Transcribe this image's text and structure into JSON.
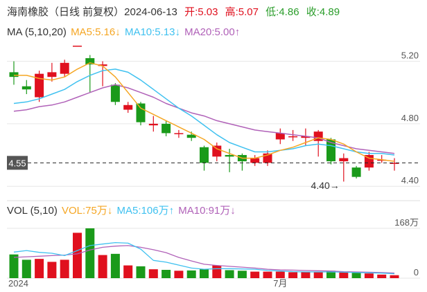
{
  "header": {
    "title": "海南橡胶（日线 前复权）",
    "date": "2024-06-13",
    "open_label": "开:5.03",
    "high_label": "高:5.07",
    "low_label": "低:4.86",
    "close_label": "收:4.89"
  },
  "ma_legend": {
    "name": "MA (5,10,20)",
    "ma5": "MA5:5.16↓",
    "ma10": "MA10:5.13↓",
    "ma20": "MA20:5.00↑"
  },
  "vol_legend": {
    "name": "VOL (5,10)",
    "vol": "VOL:75万↓",
    "ma5": "MA5:106万↑",
    "ma10": "MA10:91万↓"
  },
  "colors": {
    "up": "#e0101e",
    "down": "#1a9a1a",
    "ma5": "#f5a623",
    "ma10": "#3fc1f0",
    "ma20": "#b061b8",
    "grid": "#e6e6e6"
  },
  "chart_data": {
    "type": "candlestick",
    "price_axis": {
      "ticks": [
        "5.20",
        "4.80",
        "4.40"
      ],
      "tick_values": [
        5.2,
        4.8,
        4.4
      ],
      "ylim": [
        4.33,
        5.3
      ]
    },
    "current_price_label": "4.55",
    "current_price": 4.55,
    "low_annotation": "4.40→",
    "low_annotation_value": 4.4,
    "vol_axis": {
      "ticks": [
        "168万",
        "0"
      ],
      "tick_values": [
        168,
        0
      ]
    },
    "x_labels": [
      {
        "label": "2024",
        "index": 0
      },
      {
        "label": "7月",
        "index": 21
      }
    ],
    "candles": [
      {
        "o": 5.13,
        "c": 5.1,
        "h": 5.2,
        "l": 5.05,
        "v": 80
      },
      {
        "o": 5.04,
        "c": 5.02,
        "h": 5.08,
        "l": 4.99,
        "v": 62
      },
      {
        "o": 4.97,
        "c": 5.12,
        "h": 5.14,
        "l": 4.94,
        "v": 65
      },
      {
        "o": 5.1,
        "c": 5.13,
        "h": 5.19,
        "l": 5.07,
        "v": 55
      },
      {
        "o": 5.12,
        "c": 5.19,
        "h": 5.21,
        "l": 5.1,
        "v": 62
      },
      {
        "o": 5.3,
        "c": 5.3,
        "h": 5.3,
        "l": 5.3,
        "v": 153
      },
      {
        "o": 5.22,
        "c": 5.18,
        "h": 5.24,
        "l": 5.0,
        "v": 168
      },
      {
        "o": 5.17,
        "c": 5.18,
        "h": 5.2,
        "l": 5.04,
        "v": 78
      },
      {
        "o": 5.05,
        "c": 4.94,
        "h": 5.06,
        "l": 4.92,
        "v": 82
      },
      {
        "o": 4.89,
        "c": 4.92,
        "h": 4.94,
        "l": 4.87,
        "v": 43
      },
      {
        "o": 4.93,
        "c": 4.81,
        "h": 4.94,
        "l": 4.79,
        "v": 40
      },
      {
        "o": 4.79,
        "c": 4.8,
        "h": 4.85,
        "l": 4.75,
        "v": 30
      },
      {
        "o": 4.8,
        "c": 4.74,
        "h": 4.82,
        "l": 4.72,
        "v": 28
      },
      {
        "o": 4.74,
        "c": 4.74,
        "h": 4.76,
        "l": 4.71,
        "v": 25
      },
      {
        "o": 4.73,
        "c": 4.71,
        "h": 4.75,
        "l": 4.69,
        "v": 26
      },
      {
        "o": 4.65,
        "c": 4.55,
        "h": 4.66,
        "l": 4.5,
        "v": 30
      },
      {
        "o": 4.59,
        "c": 4.66,
        "h": 4.68,
        "l": 4.56,
        "v": 43
      },
      {
        "o": 4.6,
        "c": 4.59,
        "h": 4.64,
        "l": 4.49,
        "v": 27
      },
      {
        "o": 4.6,
        "c": 4.56,
        "h": 4.61,
        "l": 4.5,
        "v": 25
      },
      {
        "o": 4.55,
        "c": 4.58,
        "h": 4.6,
        "l": 4.53,
        "v": 22
      },
      {
        "o": 4.55,
        "c": 4.61,
        "h": 4.63,
        "l": 4.53,
        "v": 22
      },
      {
        "o": 4.7,
        "c": 4.74,
        "h": 4.77,
        "l": 4.67,
        "v": 22
      },
      {
        "o": 4.72,
        "c": 4.72,
        "h": 4.76,
        "l": 4.69,
        "v": 20
      },
      {
        "o": 4.71,
        "c": 4.72,
        "h": 4.77,
        "l": 4.66,
        "v": 20
      },
      {
        "o": 4.69,
        "c": 4.75,
        "h": 4.76,
        "l": 4.59,
        "v": 22
      },
      {
        "o": 4.7,
        "c": 4.56,
        "h": 4.71,
        "l": 4.54,
        "v": 25
      },
      {
        "o": 4.56,
        "c": 4.58,
        "h": 4.61,
        "l": 4.43,
        "v": 20
      },
      {
        "o": 4.52,
        "c": 4.46,
        "h": 4.53,
        "l": 4.45,
        "v": 18
      },
      {
        "o": 4.52,
        "c": 4.6,
        "h": 4.62,
        "l": 4.5,
        "v": 16
      },
      {
        "o": 4.57,
        "c": 4.57,
        "h": 4.6,
        "l": 4.55,
        "v": 12
      },
      {
        "o": 4.55,
        "c": 4.55,
        "h": 4.58,
        "l": 4.5,
        "v": 10
      }
    ],
    "ma5": [
      5.11,
      5.11,
      5.09,
      5.08,
      5.1,
      5.15,
      5.19,
      5.17,
      5.1,
      5.0,
      4.9,
      4.86,
      4.82,
      4.78,
      4.74,
      4.7,
      4.64,
      4.61,
      4.58,
      4.58,
      4.6,
      4.63,
      4.65,
      4.68,
      4.71,
      4.7,
      4.67,
      4.62,
      4.58,
      4.57,
      4.56
    ],
    "ma10": [
      4.93,
      4.94,
      4.96,
      4.99,
      5.02,
      5.07,
      5.11,
      5.14,
      5.15,
      5.13,
      5.08,
      5.02,
      4.96,
      4.9,
      4.85,
      4.79,
      4.73,
      4.68,
      4.65,
      4.62,
      4.62,
      4.63,
      4.64,
      4.66,
      4.67,
      4.66,
      4.64,
      4.62,
      4.61,
      4.61,
      4.6
    ],
    "ma20": [
      4.88,
      4.89,
      4.91,
      4.92,
      4.94,
      4.97,
      5.0,
      5.03,
      5.05,
      5.03,
      5.0,
      4.97,
      4.93,
      4.9,
      4.87,
      4.85,
      4.82,
      4.8,
      4.78,
      4.76,
      4.75,
      4.74,
      4.73,
      4.72,
      4.71,
      4.68,
      4.66,
      4.64,
      4.63,
      4.62,
      4.61
    ],
    "vol_ma5": [
      88,
      93,
      87,
      84,
      76,
      93,
      110,
      115,
      120,
      118,
      98,
      60,
      54,
      44,
      34,
      30,
      32,
      32,
      31,
      30,
      26,
      24,
      22,
      21,
      21,
      21,
      20,
      19,
      18,
      17,
      15
    ],
    "vol_ma10": [
      70,
      72,
      74,
      76,
      78,
      82,
      95,
      104,
      108,
      110,
      104,
      96,
      86,
      70,
      58,
      47,
      43,
      40,
      37,
      34,
      30,
      28,
      27,
      26,
      25,
      24,
      22,
      21,
      20,
      19,
      17
    ]
  }
}
